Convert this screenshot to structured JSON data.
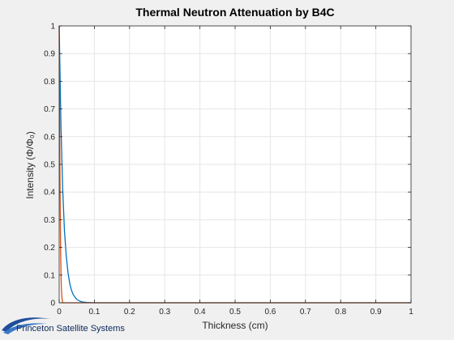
{
  "chart_data": {
    "type": "line",
    "title": "Thermal Neutron Attenuation by B4C",
    "xlabel": "Thickness (cm)",
    "ylabel": "Intensity (Φ/Φ₀)",
    "xlim": [
      0,
      1
    ],
    "ylim": [
      0,
      1
    ],
    "xticks": [
      "0",
      "0.1",
      "0.2",
      "0.3",
      "0.4",
      "0.5",
      "0.6",
      "0.7",
      "0.8",
      "0.9",
      "1"
    ],
    "yticks": [
      "0",
      "0.1",
      "0.2",
      "0.3",
      "0.4",
      "0.5",
      "0.6",
      "0.7",
      "0.8",
      "0.9",
      "1"
    ],
    "grid": true,
    "series": [
      {
        "color": "#0072bd",
        "x": [
          0,
          0.005,
          0.01,
          0.015,
          0.02,
          0.025,
          0.03,
          0.035,
          0.04,
          0.05,
          0.06,
          0.07,
          0.08,
          0.1,
          0.15,
          0.2,
          0.3,
          0.4,
          0.5,
          0.6,
          0.7,
          0.8,
          0.9,
          1.0
        ],
        "values": [
          1.0,
          0.64,
          0.41,
          0.26,
          0.17,
          0.11,
          0.07,
          0.045,
          0.029,
          0.012,
          0.005,
          0.002,
          0.001,
          0.0,
          0.0,
          0.0,
          0.0,
          0.0,
          0.0,
          0.0,
          0.0,
          0.0,
          0.0,
          0.0
        ]
      },
      {
        "color": "#d95319",
        "x": [
          0,
          0.001,
          0.002,
          0.003,
          0.004,
          0.005,
          0.006,
          0.008,
          0.01,
          0.02,
          0.05,
          0.1,
          0.2,
          0.4,
          0.6,
          0.8,
          1.0
        ],
        "values": [
          1.0,
          0.72,
          0.5,
          0.33,
          0.2,
          0.12,
          0.06,
          0.015,
          0.0,
          0.0,
          0.0,
          0.0,
          0.0,
          0.0,
          0.0,
          0.0,
          0.0
        ]
      }
    ]
  },
  "footer": {
    "logo_text": "Princeton Satellite Systems"
  }
}
